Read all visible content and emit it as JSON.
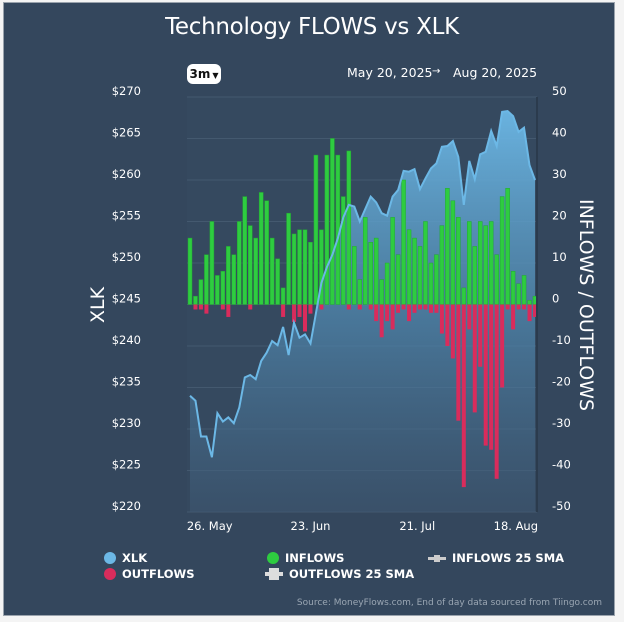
{
  "chart_data": {
    "type": "bar+area",
    "title": "Technology FLOWS vs XLK",
    "range_selector": "3m",
    "date_from": "May 20, 2025",
    "date_to": "Aug 20, 2025",
    "range_arrow": "→",
    "ylabel_left": "XLK",
    "ylabel_right": "INFLOWS / OUTFLOWS",
    "ylim_left": [
      220,
      270
    ],
    "ylim_right": [
      -50,
      50
    ],
    "left_ticks": [
      "$270",
      "$265",
      "$260",
      "$255",
      "$250",
      "$245",
      "$240",
      "$235",
      "$230",
      "$225",
      "$220"
    ],
    "right_ticks": [
      "50",
      "40",
      "30",
      "20",
      "10",
      "0",
      "-10",
      "-20",
      "-30",
      "-40",
      "-50"
    ],
    "x_ticks": [
      "26. May",
      "23. Jun",
      "21. Jul",
      "18. Aug"
    ],
    "grid": true,
    "colors": {
      "xlk": "#6cb8e6",
      "inflows": "#2ecc40",
      "outflows": "#d92c5c",
      "background": "#34475d"
    },
    "series": [
      {
        "name": "XLK",
        "type": "area",
        "values": [
          234.0,
          233.4,
          229.1,
          229.1,
          226.6,
          231.9,
          230.9,
          231.4,
          230.7,
          232.6,
          236.2,
          236.5,
          236.0,
          238.2,
          239.2,
          240.6,
          240.1,
          242.3,
          238.9,
          242.8,
          241.0,
          241.4,
          240.3,
          244.0,
          247.6,
          249.5,
          251.0,
          253.0,
          255.5,
          257.0,
          256.8,
          255.0,
          256.5,
          258.0,
          257.3,
          256.0,
          255.7,
          258.0,
          258.8,
          261.1,
          261.0,
          261.3,
          258.9,
          260.2,
          261.4,
          262.0,
          264.0,
          264.1,
          264.7,
          262.8,
          257.0,
          262.3,
          260.1,
          263.1,
          263.4,
          265.9,
          264.1,
          268.2,
          268.3,
          267.7,
          265.8,
          266.3,
          261.8,
          260.0
        ]
      },
      {
        "name": "INFLOWS",
        "type": "bar",
        "values": [
          16,
          2,
          6,
          12,
          20,
          7,
          8,
          14,
          12,
          20,
          26,
          19,
          16,
          27,
          25,
          16,
          11,
          4,
          22,
          17,
          18,
          18,
          15,
          36,
          18,
          36,
          40,
          36,
          26,
          37,
          14,
          6,
          21,
          15,
          16,
          6,
          10,
          21,
          12,
          30,
          18,
          16,
          14,
          20,
          10,
          12,
          19,
          28,
          25,
          21,
          4,
          20,
          14,
          20,
          19,
          20,
          12,
          26,
          28,
          8,
          5,
          7,
          1,
          2
        ]
      },
      {
        "name": "OUTFLOWS",
        "type": "bar",
        "values": [
          0,
          -1.2,
          -1.2,
          -2.2,
          0,
          0,
          -1.2,
          -3,
          0,
          0,
          0,
          -1.2,
          0,
          0,
          0,
          0,
          0,
          -3,
          0,
          -4.2,
          -3,
          -6.5,
          -2.2,
          0,
          -1.2,
          0,
          0,
          0,
          0,
          -1.2,
          0,
          -1.2,
          0,
          -1.2,
          -4,
          -7.9,
          -4,
          -6,
          -2,
          -1.2,
          -4,
          -2,
          -1.2,
          -1.2,
          -2,
          -2,
          -7,
          -10,
          -13,
          -28,
          -44,
          -6,
          -26,
          -15,
          -34,
          -35,
          -42,
          -20,
          -1.2,
          -6,
          -1.2,
          -1.2,
          -4,
          -3
        ]
      }
    ],
    "legend": [
      "XLK",
      "OUTFLOWS",
      "INFLOWS",
      "OUTFLOWS 25 SMA",
      "INFLOWS 25 SMA"
    ],
    "legend_placement": "bottom"
  },
  "source": "Source: MoneyFlows.com, End of day data sourced from Tiingo.com"
}
